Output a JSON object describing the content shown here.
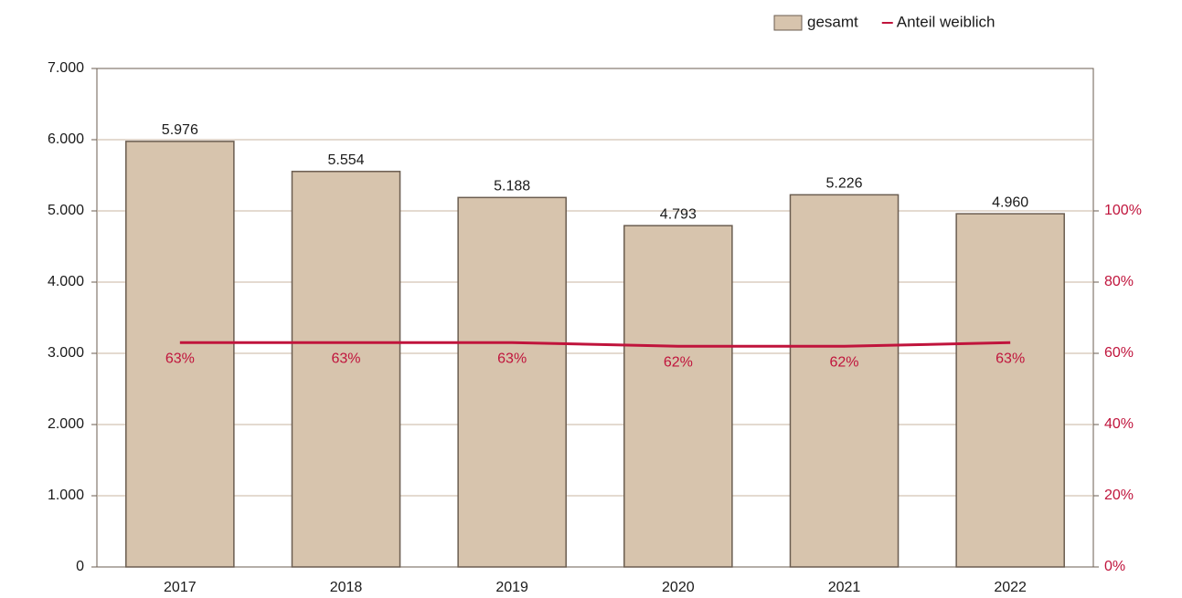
{
  "chart_data": {
    "type": "bar",
    "categories": [
      "2017",
      "2018",
      "2019",
      "2020",
      "2021",
      "2022"
    ],
    "series": [
      {
        "name": "gesamt",
        "type": "bar",
        "color": "#d7c4ad",
        "values": [
          5976,
          5554,
          5188,
          4793,
          5226,
          4960
        ],
        "value_labels": [
          "5.976",
          "5.554",
          "5.188",
          "4.793",
          "5.226",
          "4.960"
        ]
      },
      {
        "name": "Anteil weiblich",
        "type": "line",
        "axis": "y2",
        "color": "#c0143c",
        "values": [
          63,
          63,
          63,
          62,
          62,
          63
        ],
        "value_labels": [
          "63%",
          "63%",
          "63%",
          "62%",
          "62%",
          "63%"
        ]
      }
    ],
    "ylim": [
      0,
      7000
    ],
    "yticks": [
      0,
      {
        "value": 1000,
        "label": "1.000"
      },
      {
        "value": 2000,
        "label": "2.000"
      },
      {
        "value": 3000,
        "label": "3.000"
      },
      {
        "value": 4000,
        "label": "4.000"
      },
      {
        "value": 5000,
        "label": "5.000"
      },
      {
        "value": 6000,
        "label": "6.000"
      },
      {
        "value": 7000,
        "label": "7.000"
      }
    ],
    "y2lim": [
      0,
      140
    ],
    "y2ticks": [
      {
        "value": 0,
        "label": "0%"
      },
      {
        "value": 20,
        "label": "20%"
      },
      {
        "value": 40,
        "label": "40%"
      },
      {
        "value": 60,
        "label": "60%"
      },
      {
        "value": 80,
        "label": "80%"
      },
      {
        "value": 100,
        "label": "100%"
      }
    ],
    "grid": true,
    "legend": "top"
  }
}
